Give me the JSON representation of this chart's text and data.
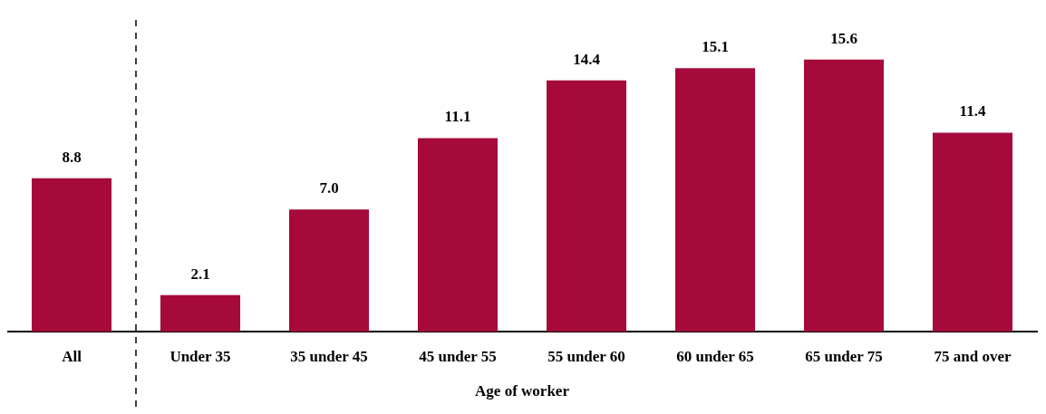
{
  "chart_data": {
    "type": "bar",
    "xlabel": "Age of worker",
    "categories": [
      "All",
      "Under 35",
      "35 under 45",
      "45 under 55",
      "55 under 60",
      "60 under 65",
      "65 under 75",
      "75 and over"
    ],
    "values": [
      8.8,
      2.1,
      7.0,
      11.1,
      14.4,
      15.1,
      15.6,
      11.4
    ],
    "value_labels": [
      "8.8",
      "2.1",
      "7.0",
      "11.1",
      "14.4",
      "15.1",
      "15.6",
      "11.4"
    ],
    "color": "#a50a3a",
    "grid": false,
    "legend": false
  }
}
